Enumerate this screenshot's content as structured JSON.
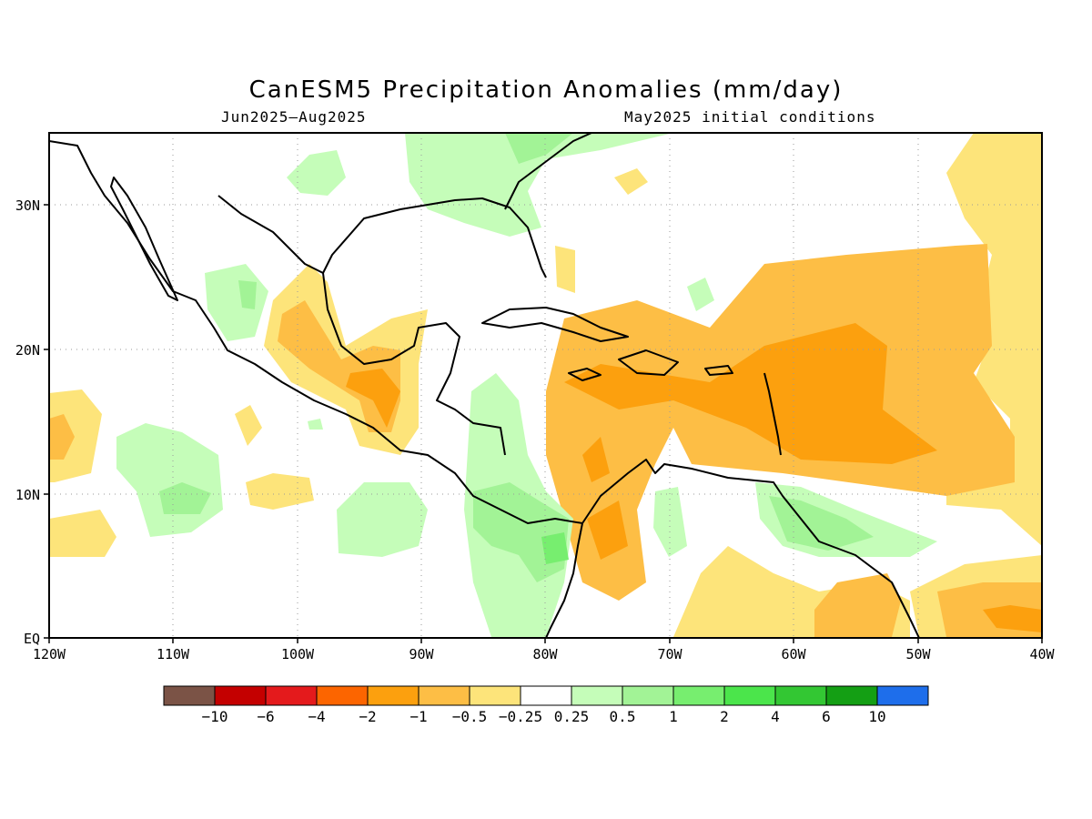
{
  "title": "CanESM5 Precipitation Anomalies (mm/day)",
  "period": "Jun2025–Aug2025",
  "init": "May2025 initial conditions",
  "map": {
    "lon_range": [
      -120,
      -40
    ],
    "lat_range": [
      0,
      35
    ],
    "x_ticks": [
      "120W",
      "110W",
      "100W",
      "90W",
      "80W",
      "70W",
      "60W",
      "50W",
      "40W"
    ],
    "y_ticks": [
      "EQ",
      "10N",
      "20N",
      "30N"
    ],
    "gridlines": "dotted"
  },
  "colorbar": {
    "colors": [
      "#7b5346",
      "#c40000",
      "#e41a1c",
      "#fc6500",
      "#fca00e",
      "#fdbe45",
      "#fde47a",
      "#ffffff",
      "#c5fdb9",
      "#a2f396",
      "#77ee6f",
      "#4be54b",
      "#33c733",
      "#149f14",
      "#1e6eeb"
    ],
    "labels": [
      "−10",
      "−6",
      "−4",
      "−2",
      "−1",
      "−0.5",
      "−0.25",
      "0.25",
      "0.5",
      "1",
      "2",
      "4",
      "6",
      "10"
    ]
  },
  "colors": {
    "dry_light": "#fde47a",
    "dry_med": "#fdbe45",
    "dry_strong": "#fca00e",
    "wet_light": "#c5fdb9",
    "wet_med": "#a2f396",
    "wet_strong": "#77ee6f"
  }
}
